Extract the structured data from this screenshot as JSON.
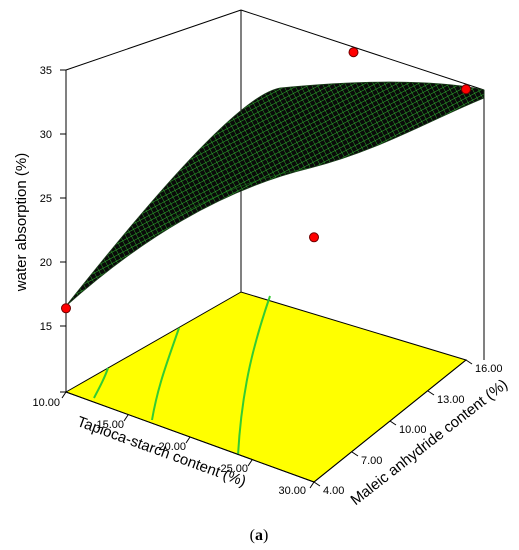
{
  "chart_data": {
    "type": "surface3d",
    "title": "",
    "zlabel": "water absorption (%)",
    "xlabel": "Tapioca-starch content (%)",
    "ylabel": "Maleic anhydride content (%)",
    "zlim": [
      10,
      35
    ],
    "xlim": [
      10,
      30
    ],
    "ylim": [
      4,
      16
    ],
    "z_ticks": [
      "15",
      "20",
      "25",
      "30",
      "35"
    ],
    "x_ticks": [
      "10.00",
      "15.00",
      "20.00",
      "25.00",
      "30.00"
    ],
    "y_ticks": [
      "4.00",
      "7.00",
      "10.00",
      "13.00",
      "16.00"
    ],
    "surface_corners": [
      {
        "x": 10,
        "y": 4,
        "z": 16.5
      },
      {
        "x": 30,
        "y": 4,
        "z": 27
      },
      {
        "x": 30,
        "y": 16,
        "z": 33.5
      },
      {
        "x": 10,
        "y": 16,
        "z": 19
      }
    ],
    "design_points": [
      {
        "x": 10,
        "y": 4,
        "z": 16.5
      },
      {
        "x": 20,
        "y": 16,
        "z": 32.5
      },
      {
        "x": 30,
        "y": 4,
        "z": 29
      },
      {
        "x": 30,
        "y": 16,
        "z": 33.5
      }
    ],
    "floor_color": "#ffff00",
    "surface_color": "#1a1a1a",
    "mesh_color": "#33cc33",
    "point_color": "#ff0000",
    "contour_color": "#33cc33"
  },
  "caption": {
    "open": "(",
    "letter": "a",
    "close": ")"
  }
}
